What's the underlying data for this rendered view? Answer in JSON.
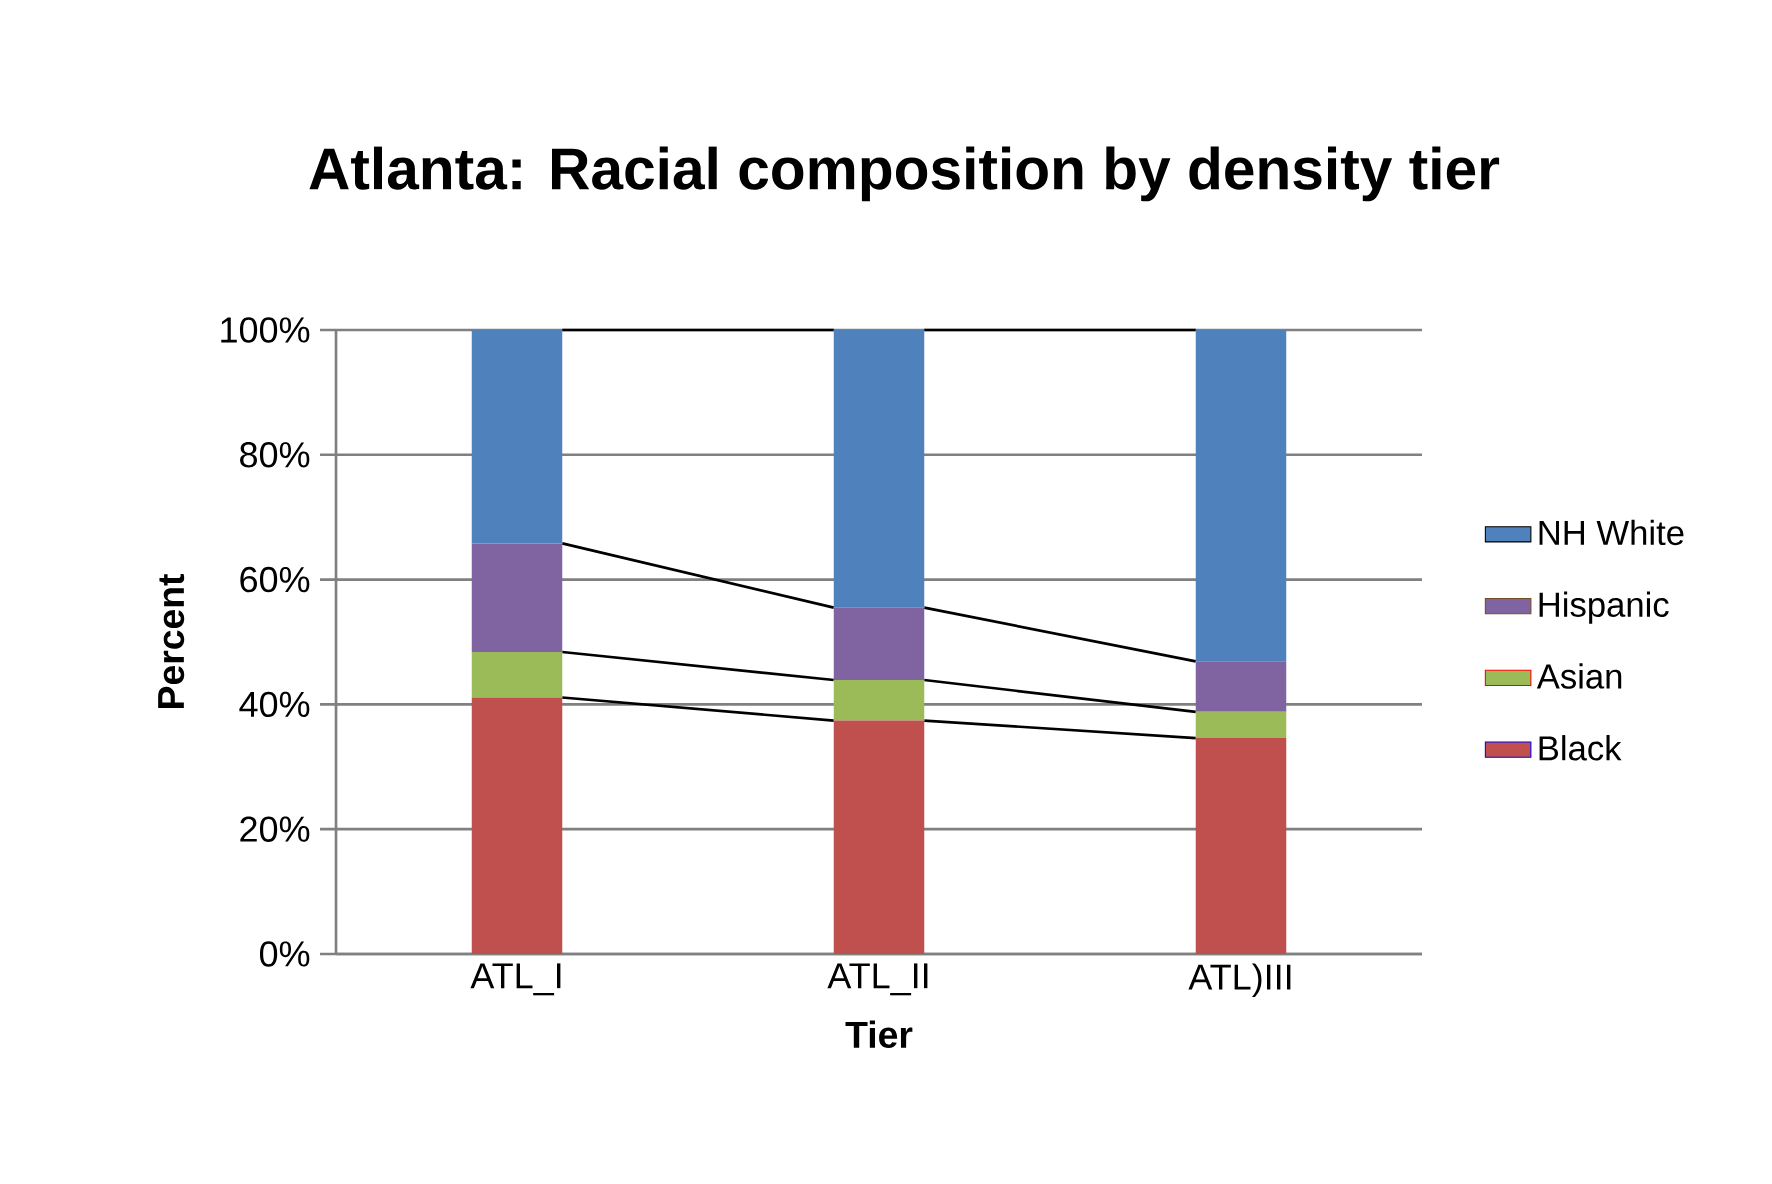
{
  "chart_data": {
    "type": "bar",
    "stacked": true,
    "title": "Atlanta: Racial composition by density tier",
    "xlabel": "Tier",
    "ylabel": "Percent",
    "categories": [
      "ATL_I",
      "ATL_II",
      "ATL)III"
    ],
    "series": [
      {
        "name": "Black",
        "color": "#c0504d",
        "values": [
          41.1,
          37.4,
          34.6
        ]
      },
      {
        "name": "Asian",
        "color": "#9bbb59",
        "values": [
          7.3,
          6.5,
          4.2
        ]
      },
      {
        "name": "Hispanic",
        "color": "#8064a2",
        "values": [
          17.4,
          11.6,
          8.1
        ]
      },
      {
        "name": "NH White",
        "color": "#4f81bd",
        "values": [
          34.2,
          44.5,
          53.1
        ]
      }
    ],
    "ylim": [
      0,
      100
    ],
    "yticks": [
      {
        "value": 0,
        "label": "0%"
      },
      {
        "value": 20,
        "label": "20%"
      },
      {
        "value": 40,
        "label": "40%"
      },
      {
        "value": 60,
        "label": "60%"
      },
      {
        "value": 80,
        "label": "80%"
      },
      {
        "value": 100,
        "label": "100%"
      }
    ],
    "grid": "y",
    "legend": "right"
  }
}
